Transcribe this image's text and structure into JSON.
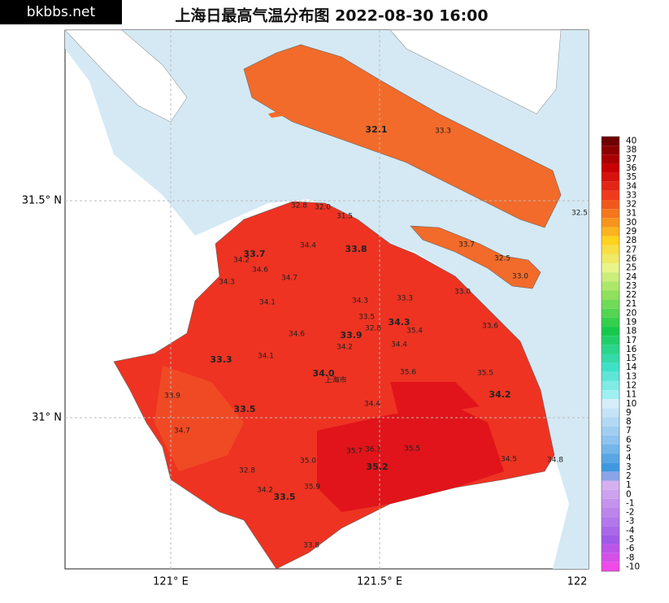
{
  "header": {
    "watermark": "bkbbs.net",
    "title": "上海日最高气温分布图 2022-08-30 16:00"
  },
  "axes": {
    "lat_labels": [
      "31.5° N",
      "31° N"
    ],
    "lon_labels": [
      "121° E",
      "121.5° E",
      "122"
    ]
  },
  "legend": {
    "labels": [
      "40",
      "38",
      "37",
      "36",
      "35",
      "34",
      "33",
      "32",
      "31",
      "30",
      "29",
      "28",
      "27",
      "26",
      "25",
      "24",
      "23",
      "22",
      "21",
      "20",
      "19",
      "18",
      "17",
      "16",
      "15",
      "14",
      "13",
      "12",
      "11",
      "10",
      "9",
      "8",
      "7",
      "6",
      "5",
      "4",
      "3",
      "2",
      "1",
      "0",
      "-1",
      "-2",
      "-3",
      "-4",
      "-5",
      "-6",
      "-8",
      "-10"
    ]
  },
  "city_label": "上海市",
  "stations": [
    "32.1",
    "33.3",
    "32.5",
    "32.8",
    "32.0",
    "31.5",
    "33.7",
    "32.5",
    "33.0",
    "33.7",
    "34.2",
    "34.4",
    "33.8",
    "34.6",
    "34.7",
    "34.3",
    "33.0",
    "34.1",
    "34.3",
    "33.3",
    "33.5",
    "34.3",
    "32.8",
    "35.4",
    "33.6",
    "34.6",
    "33.9",
    "34.2",
    "34.4",
    "33.3",
    "34.1",
    "34.0",
    "35.6",
    "35.5",
    "33.9",
    "34.2",
    "34.4",
    "33.5",
    "34.7",
    "35.7",
    "36.1",
    "35.5",
    "35.0",
    "35.2",
    "34.5",
    "34.8",
    "32.8",
    "34.2",
    "35.9",
    "33.5",
    "33.8"
  ]
}
